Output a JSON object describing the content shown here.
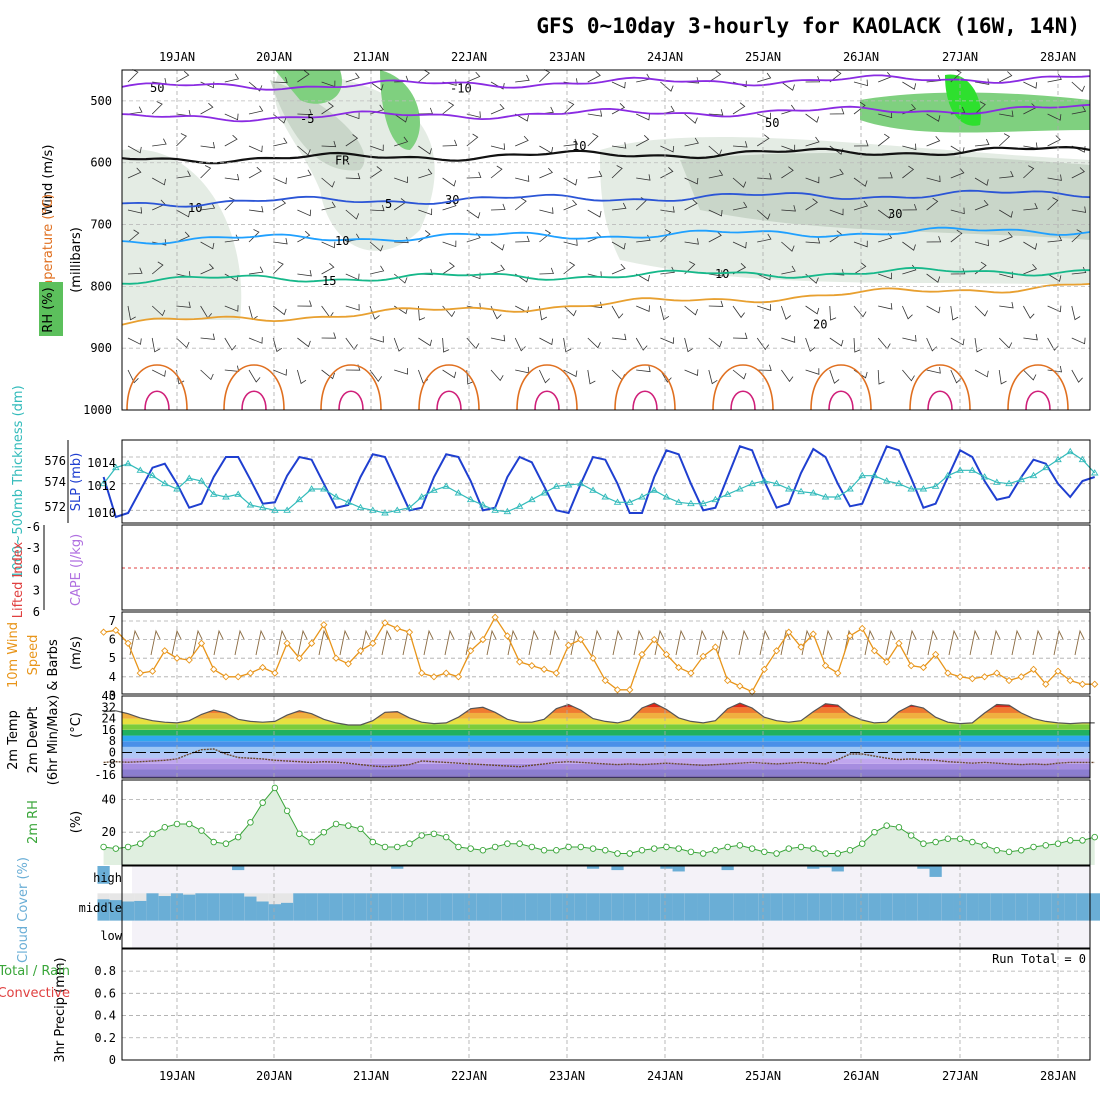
{
  "title": "GFS 0~10day 3-hourly for KAOLACK (16W, 14N)",
  "colors": {
    "temp_purple": "#8a2be2",
    "temp_blue": "#2b55d6",
    "temp_cyan": "#1fa0ff",
    "temp_teal": "#16b88a",
    "temp_orange": "#e8a030",
    "temp_dark_orange": "#e07020",
    "temp_magenta": "#d0207a",
    "slp_blue": "#1f3fd0",
    "thick_cyan": "#33bbbb",
    "wind_orange": "#e8951a",
    "rh_green": "#3aa63a",
    "cloud_blue": "#6aaed6",
    "li_red": "#e04040",
    "cape_purple": "#b070e0"
  },
  "chart_data": [
    {
      "panel": "upper_air",
      "type": "contour",
      "ylabel_parts": [
        "RH (%)",
        "Temperature (°C)",
        "Wind (m/s)"
      ],
      "ylabel_unit": "(millibars)",
      "x_dates": [
        "19JAN",
        "20JAN",
        "21JAN",
        "22JAN",
        "23JAN",
        "24JAN",
        "25JAN",
        "26JAN",
        "27JAN",
        "28JAN"
      ],
      "y_ticks": [
        "500",
        "600",
        "700",
        "800",
        "900",
        "1000"
      ],
      "ylim": [
        1000,
        450
      ],
      "isotherms": [
        {
          "label": "-10",
          "level_mb": 478
        },
        {
          "label": "-5",
          "level_mb": 528
        },
        {
          "label": "FR",
          "level_mb": 595
        },
        {
          "label": "5",
          "level_mb": 665
        },
        {
          "label": "10",
          "level_mb": 725
        },
        {
          "label": "15",
          "level_mb": 790
        },
        {
          "label": "20",
          "level_mb": 860
        }
      ],
      "rh_labels": [
        "50",
        "10",
        "30",
        "10",
        "50",
        "30",
        "10"
      ]
    },
    {
      "panel": "slp_thickness",
      "type": "line",
      "ylabel_left": "1000~500mb Thickness (dm)",
      "ylabel_right": "SLP (mb)",
      "left_ticks": [
        "576",
        "574",
        "572"
      ],
      "right_ticks": [
        "1014",
        "1012",
        "1010"
      ],
      "series": [
        {
          "name": "SLP",
          "values": [
            1012.5,
            1009.5,
            1009.8,
            1011.5,
            1013.2,
            1013.5,
            1012.0,
            1010.2,
            1010.5,
            1012.5,
            1014.0,
            1014.0,
            1012.3,
            1010.5,
            1010.6,
            1012.6,
            1014.0,
            1013.8,
            1012.0,
            1010.2,
            1010.4,
            1012.5,
            1014.2,
            1014.0,
            1012.0,
            1010.0,
            1010.2,
            1012.5,
            1014.2,
            1014.0,
            1012.2,
            1010.0,
            1010.2,
            1012.5,
            1014.0,
            1013.6,
            1011.8,
            1010.0,
            1009.8,
            1012.0,
            1014.0,
            1013.8,
            1012.0,
            1009.8,
            1009.8,
            1012.5,
            1014.5,
            1014.2,
            1012.0,
            1010.0,
            1010.2,
            1012.5,
            1014.8,
            1014.5,
            1012.2,
            1010.2,
            1010.5,
            1012.8,
            1014.6,
            1014.0,
            1012.0,
            1010.3,
            1010.5,
            1012.7,
            1014.8,
            1014.5,
            1012.4,
            1010.2,
            1010.5,
            1012.5,
            1014.5,
            1014.0,
            1012.2,
            1010.8,
            1011.0,
            1012.5,
            1013.8,
            1013.5,
            1012.0,
            1011.0,
            1012.2,
            1012.5
          ]
        },
        {
          "name": "Thickness",
          "values": [
            574.0,
            575.2,
            575.5,
            575.0,
            574.6,
            574.0,
            573.6,
            574.4,
            574.2,
            573.2,
            573.0,
            573.2,
            572.4,
            572.2,
            572.0,
            572.0,
            572.8,
            573.6,
            573.6,
            573.0,
            572.6,
            572.2,
            572.0,
            571.8,
            572.0,
            572.2,
            573.0,
            573.5,
            573.8,
            573.3,
            572.8,
            572.4,
            572.0,
            571.9,
            572.3,
            572.8,
            573.3,
            573.8,
            573.9,
            574.0,
            573.5,
            573.0,
            572.6,
            572.6,
            573.0,
            573.5,
            573.0,
            572.6,
            572.5,
            572.5,
            572.8,
            573.2,
            573.6,
            574.0,
            574.2,
            574.0,
            573.6,
            573.4,
            573.3,
            573.0,
            573.0,
            573.6,
            574.6,
            574.6,
            574.2,
            574.0,
            573.6,
            573.6,
            573.8,
            574.6,
            575.0,
            575.0,
            574.5,
            574.1,
            574.0,
            574.3,
            574.6,
            575.2,
            575.8,
            576.4,
            575.8,
            574.8
          ]
        }
      ]
    },
    {
      "panel": "stability",
      "type": "line",
      "ylabel_a": "Lifted Index",
      "ylabel_b": "CAPE (J/kg)",
      "y_ticks": [
        "-6",
        "-3",
        "0",
        "3",
        "6"
      ],
      "li_zero_line": 0
    },
    {
      "panel": "wind_10m",
      "type": "line",
      "ylabel_a": "10m Wind",
      "ylabel_b": "Speed",
      "ylabel_c": "& Barbs",
      "ylabel_unit": "(m/s)",
      "y_ticks": [
        "7",
        "6",
        "5",
        "4",
        "3"
      ],
      "ylim": [
        3,
        7.4
      ],
      "values": [
        6.4,
        6.5,
        5.8,
        4.2,
        4.3,
        5.4,
        5.0,
        4.9,
        5.8,
        4.4,
        4.0,
        4.0,
        4.2,
        4.5,
        4.2,
        5.8,
        5.0,
        5.8,
        6.8,
        5.0,
        4.7,
        5.4,
        5.8,
        6.9,
        6.6,
        6.4,
        4.2,
        4.0,
        4.2,
        4.0,
        5.4,
        6.0,
        7.2,
        6.2,
        4.8,
        4.6,
        4.4,
        4.2,
        5.7,
        6.0,
        5.0,
        3.8,
        3.3,
        3.3,
        5.2,
        6.0,
        5.2,
        4.5,
        4.2,
        5.1,
        5.6,
        3.8,
        3.5,
        3.2,
        4.4,
        5.4,
        6.4,
        5.6,
        6.3,
        4.6,
        4.2,
        6.2,
        6.6,
        5.4,
        4.8,
        5.8,
        4.6,
        4.5,
        5.2,
        4.2,
        4.0,
        3.9,
        4.0,
        4.2,
        3.8,
        4.0,
        4.4,
        3.6,
        4.3,
        3.8,
        3.6,
        3.6
      ]
    },
    {
      "panel": "temp_2m",
      "type": "area",
      "ylabel_a": "2m Temp",
      "ylabel_b": "2m DewPt",
      "ylabel_c": "(6hr Min/Max)",
      "ylabel_unit": "(°C)",
      "y_ticks": [
        "40",
        "32",
        "24",
        "16",
        "8",
        "0",
        "-8",
        "-16"
      ],
      "ylim": [
        -18,
        40
      ],
      "temp_values": [
        29.0,
        29.5,
        27.5,
        24.5,
        22.5,
        21.5,
        21.0,
        22.5,
        27.0,
        30.0,
        28.0,
        23.5,
        22.0,
        21.5,
        22.0,
        26.5,
        29.5,
        27.5,
        23.5,
        21.0,
        19.5,
        19.5,
        22.5,
        28.5,
        29.0,
        24.5,
        21.5,
        20.5,
        21.0,
        25.0,
        31.0,
        32.0,
        28.5,
        23.5,
        21.5,
        21.5,
        23.5,
        31.0,
        34.0,
        30.0,
        24.0,
        22.0,
        21.0,
        23.0,
        31.5,
        35.0,
        30.5,
        24.5,
        22.0,
        21.0,
        22.5,
        31.0,
        35.0,
        31.5,
        25.0,
        22.5,
        21.5,
        22.5,
        29.0,
        34.5,
        33.5,
        26.5,
        23.0,
        21.0,
        21.5,
        29.0,
        33.5,
        31.5,
        25.0,
        21.5,
        20.5,
        21.0,
        28.0,
        34.0,
        33.5,
        28.0,
        24.0,
        22.0,
        21.0,
        20.5,
        21.0,
        21.0
      ],
      "dewpt_values": [
        -7.0,
        -6.5,
        -6.8,
        -6.5,
        -6.0,
        -5.5,
        -4.5,
        -1.0,
        2.0,
        2.5,
        -1.0,
        -3.5,
        -4.0,
        -4.5,
        -5.5,
        -6.0,
        -6.5,
        -7.0,
        -6.5,
        -6.8,
        -7.5,
        -8.5,
        -9.5,
        -10.0,
        -9.5,
        -8.5,
        -6.0,
        -6.5,
        -7.0,
        -7.5,
        -8.0,
        -8.5,
        -9.0,
        -9.5,
        -10.0,
        -9.0,
        -8.0,
        -7.0,
        -6.5,
        -7.0,
        -7.5,
        -8.0,
        -8.5,
        -8.0,
        -8.5,
        -8.0,
        -7.5,
        -8.0,
        -8.5,
        -9.0,
        -8.5,
        -8.0,
        -7.5,
        -7.0,
        -7.5,
        -8.0,
        -7.5,
        -7.0,
        -7.5,
        -8.0,
        -5.0,
        -1.0,
        -1.0,
        -2.5,
        -4.0,
        -5.0,
        -4.5,
        -5.0,
        -5.5,
        -6.5,
        -7.0,
        -7.5,
        -7.0,
        -7.5,
        -8.0,
        -8.5,
        -8.0,
        -8.5,
        -7.5,
        -7.0,
        -7.0,
        -7.0
      ]
    },
    {
      "panel": "rh_2m",
      "type": "area",
      "ylabel_a": "2m RH",
      "ylabel_unit": "(%)",
      "y_ticks": [
        "40",
        "20"
      ],
      "ylim": [
        0,
        50
      ],
      "values": [
        11,
        10,
        11,
        13,
        19,
        23,
        25,
        25,
        21,
        14,
        13,
        17,
        26,
        38,
        47,
        33,
        19,
        14,
        20,
        25,
        24,
        22,
        14,
        11,
        11,
        13,
        18,
        19,
        17,
        11,
        10,
        9,
        11,
        13,
        13,
        11,
        9,
        9,
        11,
        11,
        10,
        9,
        7,
        7,
        9,
        10,
        11,
        10,
        8,
        7,
        9,
        11,
        12,
        10,
        8,
        7,
        10,
        11,
        10,
        7,
        7,
        9,
        13,
        20,
        24,
        23,
        18,
        13,
        14,
        16,
        16,
        14,
        12,
        9,
        8,
        9,
        11,
        12,
        13,
        15,
        15,
        17
      ]
    },
    {
      "panel": "cloud_cover",
      "type": "heatmap",
      "ylabel": "Cloud Cover (%)",
      "layers": [
        "high",
        "middle",
        "low"
      ],
      "high_values": [
        65,
        0,
        0,
        0,
        0,
        0,
        0,
        0,
        0,
        0,
        0,
        15,
        0,
        0,
        0,
        0,
        0,
        0,
        0,
        0,
        0,
        0,
        0,
        0,
        10,
        0,
        0,
        0,
        0,
        0,
        0,
        0,
        0,
        0,
        0,
        0,
        0,
        0,
        0,
        0,
        10,
        0,
        15,
        0,
        0,
        0,
        10,
        20,
        0,
        0,
        0,
        15,
        0,
        0,
        0,
        0,
        0,
        0,
        10,
        5,
        20,
        0,
        0,
        0,
        0,
        0,
        0,
        10,
        40,
        0,
        0,
        0,
        0,
        0,
        0,
        0,
        0,
        0,
        0,
        0,
        0,
        0
      ],
      "middle_values": [
        78,
        75,
        70,
        72,
        100,
        90,
        100,
        95,
        100,
        100,
        100,
        100,
        88,
        70,
        60,
        65,
        100,
        100,
        100,
        100,
        100,
        100,
        100,
        100,
        100,
        100,
        100,
        100,
        100,
        100,
        100,
        100,
        100,
        100,
        100,
        100,
        100,
        100,
        100,
        100,
        100,
        100,
        100,
        100,
        100,
        100,
        100,
        100,
        100,
        100,
        100,
        100,
        100,
        100,
        100,
        100,
        100,
        100,
        100,
        100,
        100,
        100,
        100,
        100,
        100,
        100,
        100,
        100,
        100,
        100,
        100,
        100,
        100,
        100,
        100,
        100,
        100,
        100,
        100,
        100,
        100,
        100
      ],
      "low_values": []
    },
    {
      "panel": "precip",
      "type": "bar",
      "ylabel_a": "3hr Precip (mm)",
      "ylabel_b": "Total / Rain",
      "ylabel_c": "Convective",
      "y_ticks": [
        "0.8",
        "0.6",
        "0.4",
        "0.2",
        "0"
      ],
      "ylim": [
        0,
        0.9
      ],
      "run_total_text": "Run Total = 0",
      "values": []
    }
  ]
}
